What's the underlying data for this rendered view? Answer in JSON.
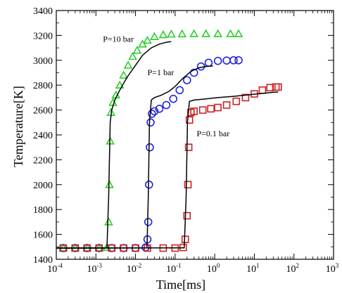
{
  "chart_data": {
    "type": "scatter",
    "xlabel": "Time[ms]",
    "ylabel": "Temperature[K]",
    "xscale": "log",
    "xlim": [
      0.0001,
      1000
    ],
    "ylim": [
      1400,
      3400
    ],
    "x_ticks": [
      0.0001,
      0.001,
      0.01,
      0.1,
      1,
      10,
      100,
      1000
    ],
    "x_tick_labels": [
      {
        "base": "10",
        "exp": "-4"
      },
      {
        "base": "10",
        "exp": "-3"
      },
      {
        "base": "10",
        "exp": "-2"
      },
      {
        "base": "10",
        "exp": "-1"
      },
      {
        "base": "10",
        "exp": "0"
      },
      {
        "base": "10",
        "exp": "1"
      },
      {
        "base": "10",
        "exp": "2"
      },
      {
        "base": "10",
        "exp": "3"
      }
    ],
    "y_ticks": [
      1400,
      1600,
      1800,
      2000,
      2200,
      2400,
      2600,
      2800,
      3000,
      3200,
      3400
    ],
    "grid": false,
    "annotations": [
      {
        "text": "P=10 bar",
        "x": 0.0015,
        "y": 3150
      },
      {
        "text": "P=1 bar",
        "x": 0.02,
        "y": 2880
      },
      {
        "text": "P=0.1 bar",
        "x": 0.35,
        "y": 2390
      }
    ],
    "series": [
      {
        "color": "#2ecc2e",
        "marker": "triangle",
        "points": [
          [
            0.00015,
            1490
          ],
          [
            0.0003,
            1490
          ],
          [
            0.0006,
            1490
          ],
          [
            0.0012,
            1490
          ],
          [
            0.0019,
            1495
          ],
          [
            0.0021,
            1700
          ],
          [
            0.0022,
            2000
          ],
          [
            0.0023,
            2350
          ],
          [
            0.0024,
            2580
          ],
          [
            0.0027,
            2660
          ],
          [
            0.0032,
            2720
          ],
          [
            0.004,
            2800
          ],
          [
            0.005,
            2880
          ],
          [
            0.0065,
            2960
          ],
          [
            0.0085,
            3030
          ],
          [
            0.011,
            3080
          ],
          [
            0.015,
            3130
          ],
          [
            0.02,
            3160
          ],
          [
            0.03,
            3190
          ],
          [
            0.05,
            3205
          ],
          [
            0.08,
            3210
          ],
          [
            0.15,
            3212
          ],
          [
            0.3,
            3213
          ],
          [
            0.6,
            3213
          ],
          [
            1.2,
            3213
          ],
          [
            2.5,
            3213
          ],
          [
            4,
            3213
          ]
        ],
        "model": [
          [
            0.0001,
            1490
          ],
          [
            0.0019,
            1492
          ],
          [
            0.0021,
            1900
          ],
          [
            0.0023,
            2500
          ],
          [
            0.0025,
            2600
          ],
          [
            0.003,
            2680
          ],
          [
            0.004,
            2760
          ],
          [
            0.006,
            2860
          ],
          [
            0.01,
            2960
          ],
          [
            0.015,
            3040
          ],
          [
            0.025,
            3100
          ],
          [
            0.04,
            3130
          ],
          [
            0.06,
            3145
          ],
          [
            0.08,
            3150
          ]
        ]
      },
      {
        "color": "#2323e0",
        "marker": "circle",
        "points": [
          [
            0.00015,
            1490
          ],
          [
            0.0003,
            1490
          ],
          [
            0.0006,
            1490
          ],
          [
            0.0012,
            1490
          ],
          [
            0.0025,
            1490
          ],
          [
            0.005,
            1490
          ],
          [
            0.01,
            1490
          ],
          [
            0.018,
            1495
          ],
          [
            0.02,
            1560
          ],
          [
            0.021,
            1700
          ],
          [
            0.022,
            2000
          ],
          [
            0.023,
            2300
          ],
          [
            0.024,
            2500
          ],
          [
            0.026,
            2570
          ],
          [
            0.03,
            2590
          ],
          [
            0.04,
            2610
          ],
          [
            0.06,
            2640
          ],
          [
            0.09,
            2690
          ],
          [
            0.13,
            2760
          ],
          [
            0.2,
            2840
          ],
          [
            0.3,
            2900
          ],
          [
            0.45,
            2950
          ],
          [
            0.7,
            2980
          ],
          [
            1.2,
            2995
          ],
          [
            2,
            2998
          ],
          [
            3,
            3000
          ],
          [
            4,
            3000
          ]
        ],
        "model": [
          [
            0.0001,
            1490
          ],
          [
            0.0195,
            1492
          ],
          [
            0.021,
            1900
          ],
          [
            0.0225,
            2500
          ],
          [
            0.025,
            2680
          ],
          [
            0.03,
            2700
          ],
          [
            0.045,
            2720
          ],
          [
            0.07,
            2750
          ],
          [
            0.1,
            2790
          ],
          [
            0.15,
            2850
          ],
          [
            0.25,
            2910
          ],
          [
            0.4,
            2940
          ],
          [
            0.6,
            2950
          ],
          [
            0.9,
            2955
          ]
        ]
      },
      {
        "color": "#cc2222",
        "marker": "square",
        "points": [
          [
            0.00015,
            1490
          ],
          [
            0.0003,
            1490
          ],
          [
            0.0006,
            1490
          ],
          [
            0.0012,
            1490
          ],
          [
            0.0025,
            1490
          ],
          [
            0.005,
            1490
          ],
          [
            0.01,
            1490
          ],
          [
            0.02,
            1490
          ],
          [
            0.05,
            1490
          ],
          [
            0.1,
            1490
          ],
          [
            0.16,
            1495
          ],
          [
            0.18,
            1560
          ],
          [
            0.2,
            1750
          ],
          [
            0.21,
            2000
          ],
          [
            0.22,
            2300
          ],
          [
            0.23,
            2520
          ],
          [
            0.25,
            2580
          ],
          [
            0.3,
            2590
          ],
          [
            0.5,
            2600
          ],
          [
            0.8,
            2610
          ],
          [
            1.2,
            2620
          ],
          [
            2,
            2640
          ],
          [
            3.5,
            2670
          ],
          [
            6,
            2700
          ],
          [
            10,
            2730
          ],
          [
            16,
            2760
          ],
          [
            25,
            2780
          ],
          [
            35,
            2785
          ],
          [
            40,
            2785
          ]
        ],
        "model": [
          [
            0.0001,
            1490
          ],
          [
            0.17,
            1492
          ],
          [
            0.19,
            1900
          ],
          [
            0.205,
            2500
          ],
          [
            0.23,
            2670
          ],
          [
            0.3,
            2680
          ],
          [
            0.6,
            2690
          ],
          [
            1.2,
            2700
          ],
          [
            3,
            2710
          ],
          [
            6,
            2720
          ],
          [
            12,
            2730
          ],
          [
            25,
            2740
          ],
          [
            40,
            2745
          ]
        ]
      }
    ]
  }
}
